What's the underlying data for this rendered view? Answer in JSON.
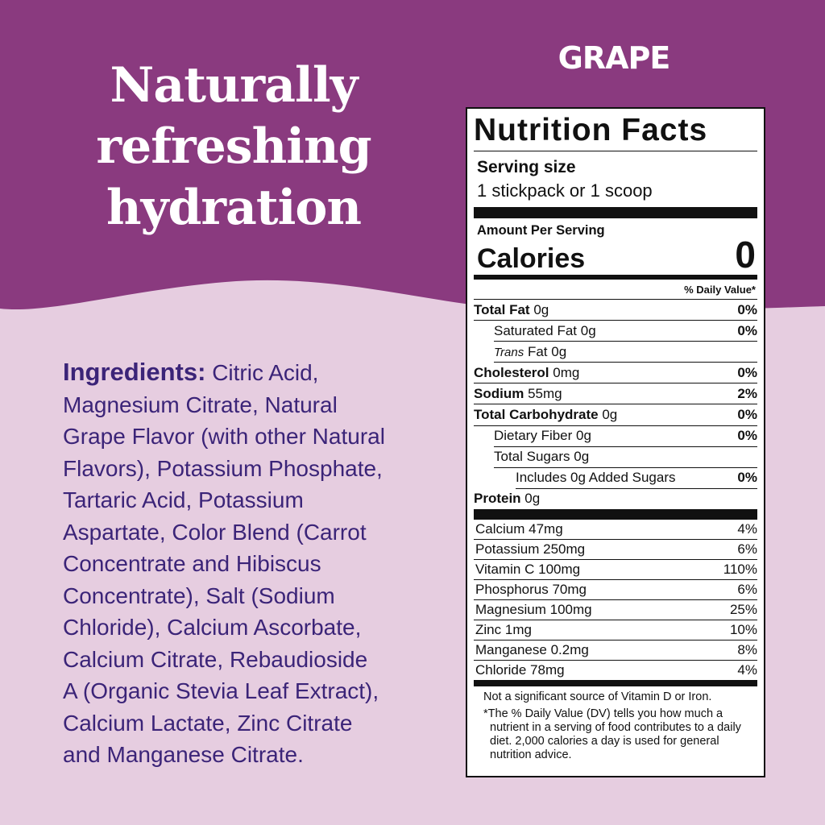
{
  "headline": [
    "Naturally",
    "refreshing",
    "hydration"
  ],
  "flavor": "GRAPE",
  "ingredients": {
    "label": "Ingredients:",
    "lines": [
      "Citric Acid,",
      "Magnesium Citrate, Natural",
      "Grape Flavor (with other Natural",
      "Flavors), Potassium Phosphate,",
      "Tartaric Acid, Potassium",
      "Aspartate, Color Blend (Carrot",
      "Concentrate and Hibiscus",
      "Concentrate), Salt (Sodium",
      "Chloride), Calcium Ascorbate,",
      "Calcium Citrate, Rebaudioside",
      "A (Organic Stevia Leaf Extract),",
      "Calcium Lactate, Zinc Citrate",
      "and Manganese Citrate."
    ]
  },
  "nutrition": {
    "title": "Nutrition Facts",
    "serving_label": "Serving size",
    "serving": "1 stickpack or 1 scoop",
    "amount_label": "Amount Per Serving",
    "calories_label": "Calories",
    "calories": 0,
    "dv_header": "% Daily Value*",
    "rows": [
      {
        "name": "Total Fat",
        "amount": "0g",
        "dv": "0%"
      },
      {
        "name": "Saturated Fat",
        "amount": "0g",
        "dv": "0%"
      },
      {
        "name_italic": "Trans",
        "name": "Fat",
        "amount": "0g"
      },
      {
        "name": "Cholesterol",
        "amount": "0mg",
        "dv": "0%"
      },
      {
        "name": "Sodium",
        "amount": "55mg",
        "dv": "2%"
      },
      {
        "name": "Total Carbohydrate",
        "amount": "0g",
        "dv": "0%"
      },
      {
        "name": "Dietary Fiber",
        "amount": "0g",
        "dv": "0%"
      },
      {
        "name": "Total Sugars",
        "amount": "0g"
      },
      {
        "name": "Includes 0g Added Sugars",
        "dv": "0%"
      },
      {
        "name": "Protein",
        "amount": "0g"
      }
    ],
    "minerals": [
      {
        "name": "Calcium",
        "amount": "47mg",
        "dv": "4%"
      },
      {
        "name": "Potassium",
        "amount": "250mg",
        "dv": "6%"
      },
      {
        "name": "Vitamin C",
        "amount": "100mg",
        "dv": "110%"
      },
      {
        "name": "Phosphorus",
        "amount": "70mg",
        "dv": "6%"
      },
      {
        "name": "Magnesium",
        "amount": "100mg",
        "dv": "25%"
      },
      {
        "name": "Zinc",
        "amount": "1mg",
        "dv": "10%"
      },
      {
        "name": "Manganese",
        "amount": "0.2mg",
        "dv": "8%"
      },
      {
        "name": "Chloride",
        "amount": "78mg",
        "dv": "4%"
      }
    ],
    "footnotes": [
      "Not a significant source of Vitamin D or Iron.",
      "*The % Daily Value (DV) tells you how much a nutrient in a serving of food contributes to a daily diet. 2,000 calories a day is used for general nutrition advice."
    ]
  }
}
